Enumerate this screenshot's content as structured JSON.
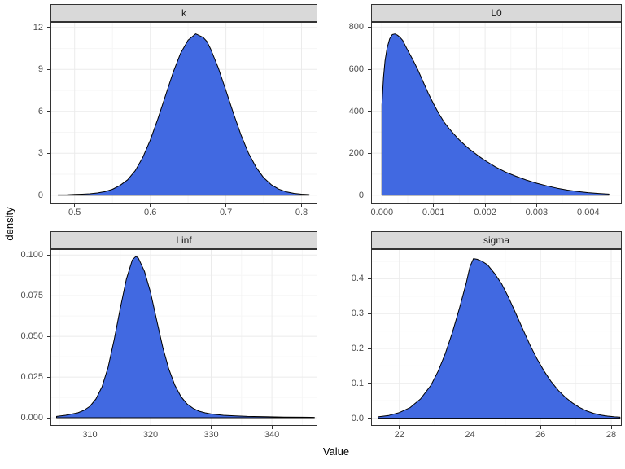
{
  "figure": {
    "colors": {
      "fill": "#4169E1",
      "line": "#000000",
      "strip_bg": "#D9D9D9",
      "border": "#333333",
      "grid_major": "#EBEBEB",
      "grid_minor": "#F6F6F6",
      "tick_text": "#4D4D4D"
    }
  },
  "chart_data": {
    "type": "area",
    "title": "",
    "xlabel": "Value",
    "ylabel": "density",
    "legend": "none",
    "grid": "on",
    "facets": [
      {
        "id": "k",
        "title": "k",
        "xlim": [
          0.468,
          0.821
        ],
        "ylim": [
          -0.6,
          12.4
        ],
        "x_ticks": [
          {
            "v": 0.5,
            "label": "0.5"
          },
          {
            "v": 0.6,
            "label": "0.6"
          },
          {
            "v": 0.7,
            "label": "0.7"
          },
          {
            "v": 0.8,
            "label": "0.8"
          }
        ],
        "y_ticks": [
          {
            "v": 0,
            "label": "0"
          },
          {
            "v": 3,
            "label": "3"
          },
          {
            "v": 6,
            "label": "6"
          },
          {
            "v": 9,
            "label": "9"
          },
          {
            "v": 12,
            "label": "12"
          }
        ],
        "peak": {
          "x": 0.66,
          "y": 11.55
        },
        "points": [
          [
            0.478,
            0.02
          ],
          [
            0.49,
            0.03
          ],
          [
            0.5,
            0.05
          ],
          [
            0.51,
            0.07
          ],
          [
            0.52,
            0.1
          ],
          [
            0.53,
            0.16
          ],
          [
            0.54,
            0.25
          ],
          [
            0.55,
            0.42
          ],
          [
            0.56,
            0.7
          ],
          [
            0.57,
            1.1
          ],
          [
            0.58,
            1.75
          ],
          [
            0.59,
            2.7
          ],
          [
            0.6,
            3.95
          ],
          [
            0.61,
            5.45
          ],
          [
            0.62,
            7.1
          ],
          [
            0.63,
            8.75
          ],
          [
            0.64,
            10.15
          ],
          [
            0.65,
            11.1
          ],
          [
            0.66,
            11.55
          ],
          [
            0.67,
            11.3
          ],
          [
            0.675,
            11.0
          ],
          [
            0.68,
            10.45
          ],
          [
            0.69,
            9.1
          ],
          [
            0.7,
            7.5
          ],
          [
            0.71,
            5.85
          ],
          [
            0.72,
            4.3
          ],
          [
            0.73,
            3.0
          ],
          [
            0.74,
            2.0
          ],
          [
            0.75,
            1.25
          ],
          [
            0.76,
            0.75
          ],
          [
            0.77,
            0.43
          ],
          [
            0.78,
            0.24
          ],
          [
            0.79,
            0.13
          ],
          [
            0.8,
            0.07
          ],
          [
            0.81,
            0.04
          ]
        ]
      },
      {
        "id": "L0",
        "title": "L0",
        "xlim": [
          -0.00021,
          0.00465
        ],
        "ylim": [
          -40,
          825
        ],
        "x_ticks": [
          {
            "v": 0.0,
            "label": "0.000"
          },
          {
            "v": 0.001,
            "label": "0.001"
          },
          {
            "v": 0.002,
            "label": "0.002"
          },
          {
            "v": 0.003,
            "label": "0.003"
          },
          {
            "v": 0.004,
            "label": "0.004"
          }
        ],
        "y_ticks": [
          {
            "v": 0,
            "label": "0"
          },
          {
            "v": 200,
            "label": "200"
          },
          {
            "v": 400,
            "label": "400"
          },
          {
            "v": 600,
            "label": "600"
          },
          {
            "v": 800,
            "label": "800"
          }
        ],
        "peak": {
          "x": 0.00025,
          "y": 768
        },
        "points": [
          [
            0.0,
            430
          ],
          [
            3e-05,
            560
          ],
          [
            6e-05,
            640
          ],
          [
            0.0001,
            700
          ],
          [
            0.00015,
            745
          ],
          [
            0.0002,
            765
          ],
          [
            0.00025,
            768
          ],
          [
            0.0003,
            762
          ],
          [
            0.00035,
            752
          ],
          [
            0.0004,
            738
          ],
          [
            0.0005,
            690
          ],
          [
            0.0006,
            645
          ],
          [
            0.0007,
            595
          ],
          [
            0.0008,
            540
          ],
          [
            0.0009,
            485
          ],
          [
            0.001,
            435
          ],
          [
            0.0011,
            390
          ],
          [
            0.0012,
            350
          ],
          [
            0.0013,
            318
          ],
          [
            0.0014,
            290
          ],
          [
            0.0015,
            263
          ],
          [
            0.0016,
            240
          ],
          [
            0.0017,
            219
          ],
          [
            0.0018,
            200
          ],
          [
            0.0019,
            182
          ],
          [
            0.002,
            165
          ],
          [
            0.0021,
            150
          ],
          [
            0.0022,
            135
          ],
          [
            0.0023,
            122
          ],
          [
            0.0024,
            110
          ],
          [
            0.0026,
            90
          ],
          [
            0.0028,
            72
          ],
          [
            0.003,
            57
          ],
          [
            0.0032,
            44
          ],
          [
            0.0034,
            33
          ],
          [
            0.0036,
            24
          ],
          [
            0.0038,
            17
          ],
          [
            0.004,
            12
          ],
          [
            0.0042,
            8
          ],
          [
            0.0044,
            5
          ]
        ]
      },
      {
        "id": "Linf",
        "title": "Linf",
        "xlim": [
          303.5,
          347.5
        ],
        "ylim": [
          -0.005,
          0.1036
        ],
        "x_ticks": [
          {
            "v": 310,
            "label": "310"
          },
          {
            "v": 320,
            "label": "320"
          },
          {
            "v": 330,
            "label": "330"
          },
          {
            "v": 340,
            "label": "340"
          }
        ],
        "y_ticks": [
          {
            "v": 0.0,
            "label": "0.000"
          },
          {
            "v": 0.025,
            "label": "0.025"
          },
          {
            "v": 0.05,
            "label": "0.050"
          },
          {
            "v": 0.075,
            "label": "0.075"
          },
          {
            "v": 0.1,
            "label": "0.100"
          }
        ],
        "peak": {
          "x": 317.6,
          "y": 0.0992
        },
        "points": [
          [
            304.5,
            0.0008
          ],
          [
            306,
            0.0015
          ],
          [
            308,
            0.003
          ],
          [
            309,
            0.0045
          ],
          [
            310,
            0.007
          ],
          [
            311,
            0.0115
          ],
          [
            312,
            0.019
          ],
          [
            313,
            0.031
          ],
          [
            314,
            0.048
          ],
          [
            315,
            0.067
          ],
          [
            316,
            0.085
          ],
          [
            317,
            0.097
          ],
          [
            317.6,
            0.0992
          ],
          [
            318,
            0.098
          ],
          [
            319,
            0.09
          ],
          [
            320,
            0.077
          ],
          [
            321,
            0.06
          ],
          [
            322,
            0.0435
          ],
          [
            323,
            0.03
          ],
          [
            324,
            0.02
          ],
          [
            325,
            0.013
          ],
          [
            326,
            0.0085
          ],
          [
            327,
            0.0058
          ],
          [
            328,
            0.004
          ],
          [
            329,
            0.003
          ],
          [
            330,
            0.0023
          ],
          [
            332,
            0.0015
          ],
          [
            334,
            0.0011
          ],
          [
            336,
            0.0008
          ],
          [
            339,
            0.0006
          ],
          [
            342,
            0.0004
          ],
          [
            345,
            0.0003
          ],
          [
            347,
            0.0002
          ]
        ]
      },
      {
        "id": "sigma",
        "title": "sigma",
        "xlim": [
          21.2,
          28.3
        ],
        "ylim": [
          -0.022,
          0.485
        ],
        "x_ticks": [
          {
            "v": 22,
            "label": "22"
          },
          {
            "v": 24,
            "label": "24"
          },
          {
            "v": 26,
            "label": "26"
          },
          {
            "v": 28,
            "label": "28"
          }
        ],
        "y_ticks": [
          {
            "v": 0.0,
            "label": "0.0"
          },
          {
            "v": 0.1,
            "label": "0.1"
          },
          {
            "v": 0.2,
            "label": "0.2"
          },
          {
            "v": 0.3,
            "label": "0.3"
          },
          {
            "v": 0.4,
            "label": "0.4"
          }
        ],
        "peak": {
          "x": 24.1,
          "y": 0.458
        },
        "points": [
          [
            21.4,
            0.004
          ],
          [
            21.7,
            0.008
          ],
          [
            22.0,
            0.016
          ],
          [
            22.3,
            0.03
          ],
          [
            22.6,
            0.055
          ],
          [
            22.9,
            0.095
          ],
          [
            23.1,
            0.135
          ],
          [
            23.3,
            0.185
          ],
          [
            23.5,
            0.245
          ],
          [
            23.7,
            0.315
          ],
          [
            23.9,
            0.39
          ],
          [
            24.0,
            0.435
          ],
          [
            24.1,
            0.458
          ],
          [
            24.2,
            0.456
          ],
          [
            24.35,
            0.45
          ],
          [
            24.5,
            0.44
          ],
          [
            24.7,
            0.415
          ],
          [
            24.9,
            0.385
          ],
          [
            25.1,
            0.345
          ],
          [
            25.3,
            0.3
          ],
          [
            25.5,
            0.255
          ],
          [
            25.7,
            0.21
          ],
          [
            25.9,
            0.17
          ],
          [
            26.1,
            0.135
          ],
          [
            26.3,
            0.105
          ],
          [
            26.5,
            0.08
          ],
          [
            26.7,
            0.06
          ],
          [
            26.9,
            0.044
          ],
          [
            27.1,
            0.031
          ],
          [
            27.3,
            0.021
          ],
          [
            27.5,
            0.014
          ],
          [
            27.7,
            0.009
          ],
          [
            27.9,
            0.006
          ],
          [
            28.1,
            0.004
          ],
          [
            28.25,
            0.003
          ]
        ]
      }
    ]
  }
}
